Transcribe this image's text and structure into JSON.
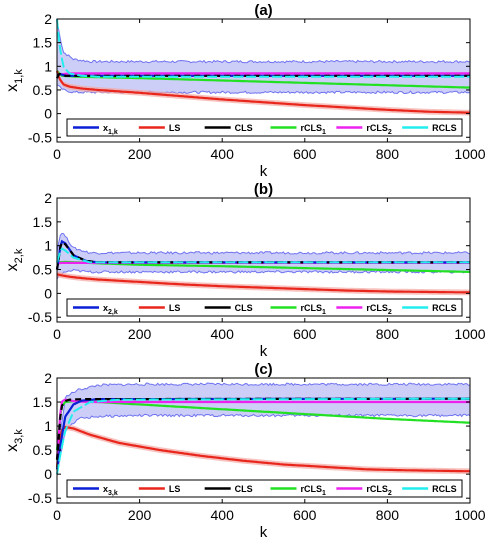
{
  "colors": {
    "x_true": "#0a1fd6",
    "LS": "#e8261c",
    "CLS": "#000000",
    "rCLS1": "#22e022",
    "rCLS2": "#ee22ee",
    "RCLS": "#22eeee",
    "band_fill": "#8f92ee",
    "band_edge": "#6f73f0",
    "ls_band": "#f3a8a2"
  },
  "chart_data": [
    {
      "type": "line",
      "title": "(a)",
      "xlabel": "k",
      "ylabel_base": "x",
      "ylabel_sub": "1,k",
      "xlim": [
        0,
        1000
      ],
      "ylim": [
        -0.6,
        2
      ],
      "xticks": [
        "0",
        "200",
        "400",
        "600",
        "800",
        "1000"
      ],
      "yticks": [
        "-0.5",
        "0",
        "0.5",
        "1",
        "1.5",
        "2"
      ],
      "legend": [
        {
          "base": "x",
          "sub": "1,k",
          "key": "x_true"
        },
        {
          "base": "LS",
          "sub": "",
          "key": "LS"
        },
        {
          "base": "CLS",
          "sub": "",
          "key": "CLS"
        },
        {
          "base": "rCLS",
          "sub": "1",
          "key": "rCLS1"
        },
        {
          "base": "rCLS",
          "sub": "2",
          "key": "rCLS2"
        },
        {
          "base": "RCLS",
          "sub": "",
          "key": "RCLS"
        }
      ],
      "band": {
        "x": [
          0,
          15,
          40,
          80,
          150,
          300,
          600,
          1000
        ],
        "upper": [
          1.95,
          1.3,
          1.15,
          1.1,
          1.1,
          1.1,
          1.1,
          1.1
        ],
        "lower": [
          0.6,
          0.5,
          0.45,
          0.45,
          0.45,
          0.45,
          0.45,
          0.45
        ]
      },
      "series": [
        {
          "key": "x_true",
          "x": [
            0,
            5,
            10,
            20,
            40,
            1000
          ],
          "y": [
            0.75,
            0.85,
            0.83,
            0.8,
            0.8,
            0.8
          ]
        },
        {
          "key": "CLS",
          "x": [
            0,
            5,
            10,
            20,
            40,
            1000
          ],
          "y": [
            0.75,
            0.85,
            0.83,
            0.8,
            0.8,
            0.8
          ]
        },
        {
          "key": "LS",
          "x": [
            0,
            5,
            15,
            30,
            60,
            100,
            200,
            300,
            400,
            500,
            600,
            700,
            800,
            900,
            1000
          ],
          "y": [
            0.9,
            0.75,
            0.62,
            0.57,
            0.53,
            0.5,
            0.44,
            0.37,
            0.3,
            0.24,
            0.18,
            0.13,
            0.08,
            0.04,
            0.02
          ]
        },
        {
          "key": "rCLS1",
          "x": [
            0,
            10,
            50,
            100,
            200,
            400,
            600,
            800,
            1000
          ],
          "y": [
            0.9,
            0.8,
            0.78,
            0.77,
            0.75,
            0.7,
            0.65,
            0.6,
            0.55
          ]
        },
        {
          "key": "rCLS2",
          "x": [
            0,
            10,
            30,
            100,
            1000
          ],
          "y": [
            0.82,
            0.83,
            0.85,
            0.85,
            0.85
          ]
        },
        {
          "key": "RCLS",
          "x": [
            0,
            5,
            15,
            30,
            60,
            100,
            1000
          ],
          "y": [
            2.0,
            1.5,
            1.0,
            0.85,
            0.8,
            0.78,
            0.78
          ]
        }
      ]
    },
    {
      "type": "line",
      "title": "(b)",
      "xlabel": "k",
      "ylabel_base": "x",
      "ylabel_sub": "2,k",
      "xlim": [
        0,
        1000
      ],
      "ylim": [
        -0.6,
        2
      ],
      "xticks": [
        "0",
        "200",
        "400",
        "600",
        "800",
        "1000"
      ],
      "yticks": [
        "-0.5",
        "0",
        "0.5",
        "1",
        "1.5",
        "2"
      ],
      "legend": [
        {
          "base": "x",
          "sub": "2,k",
          "key": "x_true"
        },
        {
          "base": "LS",
          "sub": "",
          "key": "LS"
        },
        {
          "base": "CLS",
          "sub": "",
          "key": "CLS"
        },
        {
          "base": "rCLS",
          "sub": "1",
          "key": "rCLS1"
        },
        {
          "base": "rCLS",
          "sub": "2",
          "key": "rCLS2"
        },
        {
          "base": "RCLS",
          "sub": "",
          "key": "RCLS"
        }
      ],
      "band": {
        "x": [
          0,
          10,
          20,
          40,
          80,
          150,
          1000
        ],
        "upper": [
          0.9,
          1.3,
          1.2,
          0.95,
          0.85,
          0.85,
          0.85
        ],
        "lower": [
          0.3,
          0.4,
          0.45,
          0.48,
          0.45,
          0.45,
          0.45
        ]
      },
      "series": [
        {
          "key": "x_true",
          "x": [
            0,
            10,
            20,
            40,
            70,
            100,
            1000
          ],
          "y": [
            0.5,
            1.1,
            1.05,
            0.8,
            0.68,
            0.65,
            0.65
          ]
        },
        {
          "key": "CLS",
          "x": [
            0,
            10,
            20,
            40,
            70,
            100,
            1000
          ],
          "y": [
            0.5,
            1.08,
            1.03,
            0.8,
            0.68,
            0.65,
            0.65
          ]
        },
        {
          "key": "LS",
          "x": [
            0,
            10,
            30,
            60,
            100,
            200,
            300,
            400,
            500,
            600,
            700,
            800,
            900,
            1000
          ],
          "y": [
            0.4,
            0.38,
            0.35,
            0.32,
            0.29,
            0.24,
            0.19,
            0.15,
            0.12,
            0.09,
            0.06,
            0.04,
            0.03,
            0.02
          ]
        },
        {
          "key": "rCLS1",
          "x": [
            0,
            20,
            50,
            100,
            200,
            400,
            600,
            800,
            1000
          ],
          "y": [
            0.65,
            0.66,
            0.65,
            0.63,
            0.6,
            0.57,
            0.53,
            0.49,
            0.45
          ]
        },
        {
          "key": "rCLS2",
          "x": [
            0,
            10,
            1000
          ],
          "y": [
            0.63,
            0.64,
            0.64
          ]
        },
        {
          "key": "RCLS",
          "x": [
            0,
            10,
            20,
            40,
            80,
            1000
          ],
          "y": [
            0.65,
            0.95,
            0.9,
            0.75,
            0.65,
            0.65
          ]
        }
      ]
    },
    {
      "type": "line",
      "title": "(c)",
      "xlabel": "k",
      "ylabel_base": "x",
      "ylabel_sub": "3,k",
      "xlim": [
        0,
        1000
      ],
      "ylim": [
        -0.6,
        2
      ],
      "xticks": [
        "0",
        "200",
        "400",
        "600",
        "800",
        "1000"
      ],
      "yticks": [
        "-0.5",
        "0",
        "0.5",
        "1",
        "1.5",
        "2"
      ],
      "legend": [
        {
          "base": "x",
          "sub": "3,k",
          "key": "x_true"
        },
        {
          "base": "LS",
          "sub": "",
          "key": "LS"
        },
        {
          "base": "CLS",
          "sub": "",
          "key": "CLS"
        },
        {
          "base": "rCLS",
          "sub": "1",
          "key": "rCLS1"
        },
        {
          "base": "rCLS",
          "sub": "2",
          "key": "rCLS2"
        },
        {
          "base": "RCLS",
          "sub": "",
          "key": "RCLS"
        }
      ],
      "band": {
        "x": [
          0,
          20,
          50,
          100,
          200,
          1000
        ],
        "upper": [
          0.3,
          1.6,
          1.75,
          1.85,
          1.87,
          1.87
        ],
        "lower": [
          0.0,
          0.9,
          1.15,
          1.2,
          1.22,
          1.22
        ]
      },
      "series": [
        {
          "key": "x_true",
          "x": [
            0,
            10,
            20,
            40,
            60,
            100,
            1000
          ],
          "y": [
            0.1,
            0.7,
            1.2,
            1.45,
            1.53,
            1.56,
            1.57
          ]
        },
        {
          "key": "CLS",
          "x": [
            0,
            10,
            20,
            30,
            60,
            1000
          ],
          "y": [
            0.3,
            1.4,
            1.52,
            1.55,
            1.56,
            1.57
          ]
        },
        {
          "key": "LS",
          "x": [
            0,
            5,
            10,
            20,
            40,
            80,
            150,
            250,
            350,
            450,
            550,
            650,
            750,
            850,
            1000
          ],
          "y": [
            0.15,
            0.6,
            0.9,
            0.98,
            0.95,
            0.82,
            0.65,
            0.5,
            0.38,
            0.28,
            0.2,
            0.15,
            0.1,
            0.08,
            0.06
          ]
        },
        {
          "key": "rCLS1",
          "x": [
            0,
            10,
            20,
            40,
            100,
            200,
            400,
            600,
            800,
            1000
          ],
          "y": [
            0.5,
            1.4,
            1.5,
            1.52,
            1.5,
            1.45,
            1.35,
            1.25,
            1.15,
            1.07
          ]
        },
        {
          "key": "rCLS2",
          "x": [
            0,
            10,
            20,
            40,
            80,
            1000
          ],
          "y": [
            0.3,
            1.5,
            1.55,
            1.52,
            1.5,
            1.5
          ]
        },
        {
          "key": "RCLS",
          "x": [
            0,
            10,
            20,
            40,
            80,
            150,
            1000
          ],
          "y": [
            0.0,
            0.5,
            0.9,
            1.3,
            1.5,
            1.55,
            1.57
          ]
        }
      ]
    }
  ]
}
